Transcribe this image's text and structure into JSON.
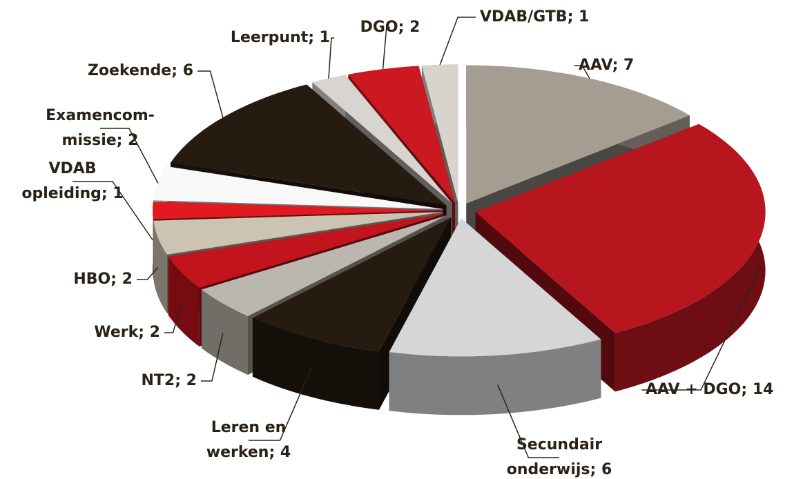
{
  "chart_data": {
    "type": "pie",
    "categories": [
      "AAV",
      "AAV + DGO",
      "Secundair\nonderwijs",
      "Leren en\nwerken",
      "NT2",
      "Werk",
      "HBO",
      "VDAB\nopleiding",
      "Examencom-\nmissie",
      "Zoekende",
      "Leerpunt",
      "DGO",
      "VDAB/GTB"
    ],
    "values": [
      7,
      14,
      6,
      4,
      2,
      2,
      2,
      1,
      2,
      6,
      1,
      2,
      1
    ],
    "value_labels": [
      "AAV; 7",
      "AAV + DGO; 14",
      "Secundair\nonderwijs; 6",
      "Leren en\nwerken; 4",
      "NT2; 2",
      "Werk; 2",
      "HBO; 2",
      "VDAB\nopleiding; 1",
      "Examencom-\nmissie; 2",
      "Zoekende; 6",
      "Leerpunt; 1",
      "DGO; 2",
      "VDAB/GTB; 1"
    ],
    "colors": [
      "#a59d92",
      "#b8161f",
      "#d6d6d6",
      "#251b10",
      "#bcb7ae",
      "#c2141c",
      "#cdc3b2",
      "#e11a22",
      "#f8f8f8",
      "#251b10",
      "#d8d4cf",
      "#cc1820",
      "#d8d3cb"
    ]
  }
}
